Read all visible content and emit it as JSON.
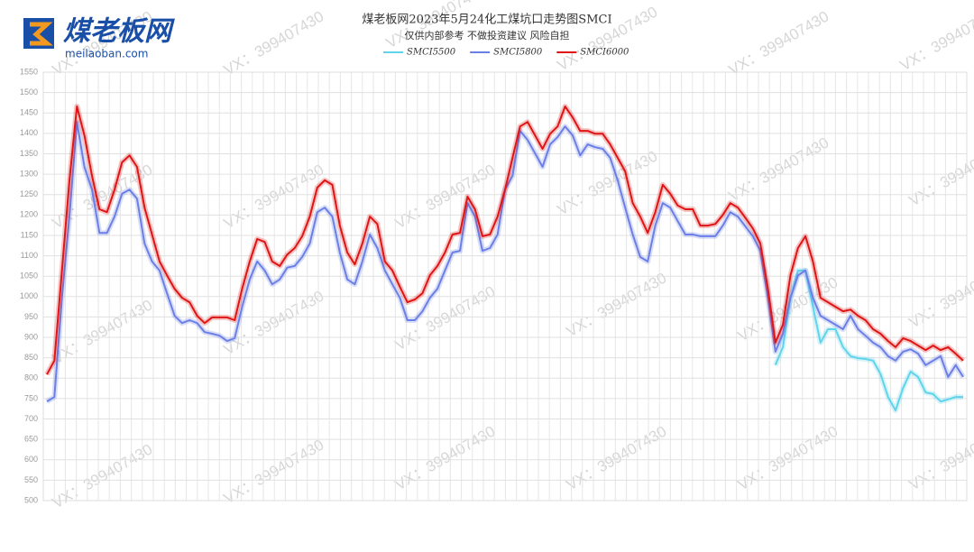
{
  "brand": {
    "name": "煤老板网",
    "url": "meilaoban.com"
  },
  "watermark": "VX：399407430",
  "chart_data": {
    "type": "line",
    "title": "煤老板网2023年5月24化工煤坑口走势图SMCI",
    "subtitle": "仅供内部参考 不做投资建议 风险自担",
    "ylim": [
      500,
      1550
    ],
    "yticks": [
      500,
      550,
      600,
      650,
      700,
      750,
      800,
      850,
      900,
      950,
      1000,
      1050,
      1100,
      1150,
      1200,
      1250,
      1300,
      1350,
      1400,
      1450,
      1500,
      1550
    ],
    "grid": true,
    "legend": "top",
    "series": [
      {
        "name": "SMCI5500",
        "color": "#5fd4ea",
        "values": [
          null,
          null,
          null,
          null,
          null,
          null,
          null,
          null,
          null,
          null,
          null,
          null,
          null,
          null,
          null,
          null,
          null,
          null,
          null,
          null,
          null,
          null,
          null,
          null,
          null,
          null,
          null,
          null,
          null,
          null,
          null,
          null,
          null,
          null,
          null,
          null,
          null,
          null,
          null,
          null,
          null,
          null,
          null,
          null,
          null,
          null,
          null,
          null,
          null,
          null,
          null,
          null,
          null,
          null,
          null,
          null,
          null,
          null,
          null,
          null,
          null,
          null,
          null,
          null,
          null,
          null,
          null,
          null,
          null,
          null,
          null,
          null,
          null,
          null,
          null,
          null,
          null,
          null,
          null,
          null,
          null,
          null,
          null,
          null,
          null,
          null,
          null,
          null,
          null,
          null,
          null,
          null,
          null,
          null,
          null,
          null,
          null,
          832,
          876,
          997,
          1064,
          1064,
          975,
          887,
          920,
          920,
          876,
          854,
          849,
          847,
          843,
          810,
          754,
          721,
          776,
          816,
          803,
          765,
          761,
          743,
          748,
          754,
          754
        ]
      },
      {
        "name": "SMCI5800",
        "color": "#6b7fe6",
        "values": [
          743,
          754,
          997,
          1196,
          1428,
          1318,
          1262,
          1156,
          1156,
          1196,
          1252,
          1262,
          1240,
          1130,
          1086,
          1064,
          1008,
          953,
          935,
          942,
          935,
          913,
          909,
          904,
          891,
          898,
          975,
          1042,
          1086,
          1064,
          1030,
          1042,
          1071,
          1075,
          1097,
          1130,
          1207,
          1218,
          1196,
          1108,
          1042,
          1030,
          1086,
          1152,
          1119,
          1064,
          1030,
          997,
          942,
          942,
          964,
          997,
          1019,
          1064,
          1108,
          1112,
          1229,
          1196,
          1112,
          1119,
          1152,
          1262,
          1296,
          1406,
          1384,
          1351,
          1318,
          1373,
          1391,
          1417,
          1395,
          1346,
          1373,
          1366,
          1362,
          1340,
          1285,
          1218,
          1152,
          1097,
          1086,
          1174,
          1229,
          1218,
          1185,
          1152,
          1152,
          1148,
          1148,
          1148,
          1174,
          1207,
          1196,
          1172,
          1148,
          1112,
          997,
          865,
          909,
          997,
          1052,
          1064,
          997,
          953,
          942,
          931,
          920,
          953,
          920,
          904,
          887,
          876,
          854,
          843,
          865,
          871,
          860,
          832,
          843,
          854,
          803,
          832,
          803
        ]
      },
      {
        "name": "SMCI6000",
        "color": "#e01414",
        "values": [
          809,
          843,
          1064,
          1285,
          1466,
          1395,
          1296,
          1214,
          1207,
          1262,
          1329,
          1346,
          1318,
          1218,
          1152,
          1086,
          1052,
          1019,
          997,
          986,
          953,
          935,
          949,
          949,
          949,
          942,
          1019,
          1086,
          1141,
          1134,
          1086,
          1075,
          1103,
          1119,
          1148,
          1196,
          1267,
          1285,
          1274,
          1174,
          1108,
          1079,
          1130,
          1196,
          1178,
          1086,
          1064,
          1024,
          986,
          993,
          1008,
          1052,
          1075,
          1108,
          1152,
          1156,
          1245,
          1214,
          1148,
          1152,
          1196,
          1262,
          1340,
          1417,
          1428,
          1395,
          1362,
          1399,
          1417,
          1466,
          1439,
          1406,
          1406,
          1399,
          1399,
          1373,
          1340,
          1307,
          1229,
          1196,
          1156,
          1207,
          1274,
          1252,
          1223,
          1214,
          1214,
          1174,
          1174,
          1178,
          1200,
          1229,
          1218,
          1193,
          1167,
          1130,
          1019,
          887,
          931,
          1052,
          1119,
          1148,
          1086,
          997,
          986,
          975,
          964,
          968,
          953,
          942,
          920,
          909,
          891,
          876,
          898,
          891,
          880,
          869,
          880,
          869,
          876,
          860,
          843
        ]
      }
    ]
  }
}
